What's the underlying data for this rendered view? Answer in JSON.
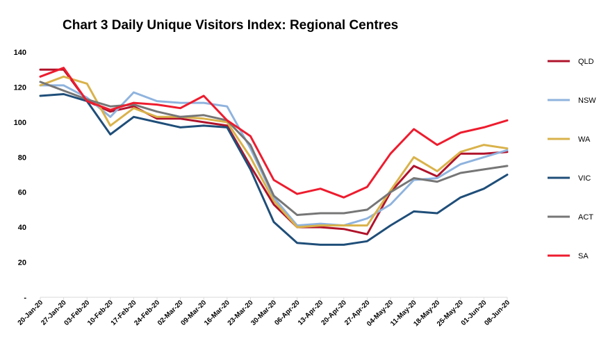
{
  "chart_data": {
    "type": "line",
    "title": "Chart 3 Daily Unique Visitors Index: Regional Centres",
    "xlabel": "",
    "ylabel": "",
    "ylim": [
      0,
      140
    ],
    "yticks": [
      "-",
      "20",
      "40",
      "60",
      "80",
      "100",
      "120",
      "140"
    ],
    "grid": false,
    "legend_position": "right",
    "categories": [
      "20-Jan-20",
      "27-Jan-20",
      "03-Feb-20",
      "10-Feb-20",
      "17-Feb-20",
      "24-Feb-20",
      "02-Mar-20",
      "09-Mar-20",
      "16-Mar-20",
      "23-Mar-20",
      "30-Mar-20",
      "06-Apr-20",
      "13-Apr-20",
      "20-Apr-20",
      "27-Apr-20",
      "04-May-20",
      "11-May-20",
      "18-May-20",
      "25-May-20",
      "01-Jun-20",
      "08-Jun-20"
    ],
    "series": [
      {
        "name": "QLD",
        "color": "#b0132b",
        "values": [
          130,
          130,
          112,
          106,
          109,
          102,
          102,
          100,
          98,
          75,
          53,
          40,
          40,
          39,
          36,
          60,
          75,
          69,
          82,
          82,
          83
        ]
      },
      {
        "name": "NSW",
        "color": "#8fb3de",
        "values": [
          121,
          121,
          114,
          103,
          117,
          112,
          111,
          111,
          109,
          85,
          57,
          41,
          42,
          41,
          45,
          53,
          67,
          68,
          76,
          80,
          84
        ]
      },
      {
        "name": "WA",
        "color": "#d9b24a",
        "values": [
          121,
          126,
          122,
          98,
          108,
          103,
          103,
          102,
          100,
          80,
          55,
          40,
          41,
          41,
          41,
          61,
          80,
          72,
          83,
          87,
          85
        ]
      },
      {
        "name": "VIC",
        "color": "#1f4e79",
        "values": [
          115,
          116,
          112,
          93,
          103,
          100,
          97,
          98,
          97,
          73,
          43,
          31,
          30,
          30,
          32,
          41,
          49,
          48,
          57,
          62,
          70
        ]
      },
      {
        "name": "ACT",
        "color": "#767676",
        "values": [
          123,
          118,
          113,
          109,
          110,
          106,
          103,
          104,
          101,
          87,
          58,
          47,
          48,
          48,
          50,
          60,
          68,
          66,
          71,
          73,
          75
        ]
      },
      {
        "name": "SA",
        "color": "#ee1c2e",
        "values": [
          126,
          131,
          112,
          107,
          111,
          110,
          108,
          115,
          101,
          92,
          67,
          59,
          62,
          57,
          63,
          82,
          96,
          87,
          94,
          97,
          101
        ]
      }
    ]
  }
}
